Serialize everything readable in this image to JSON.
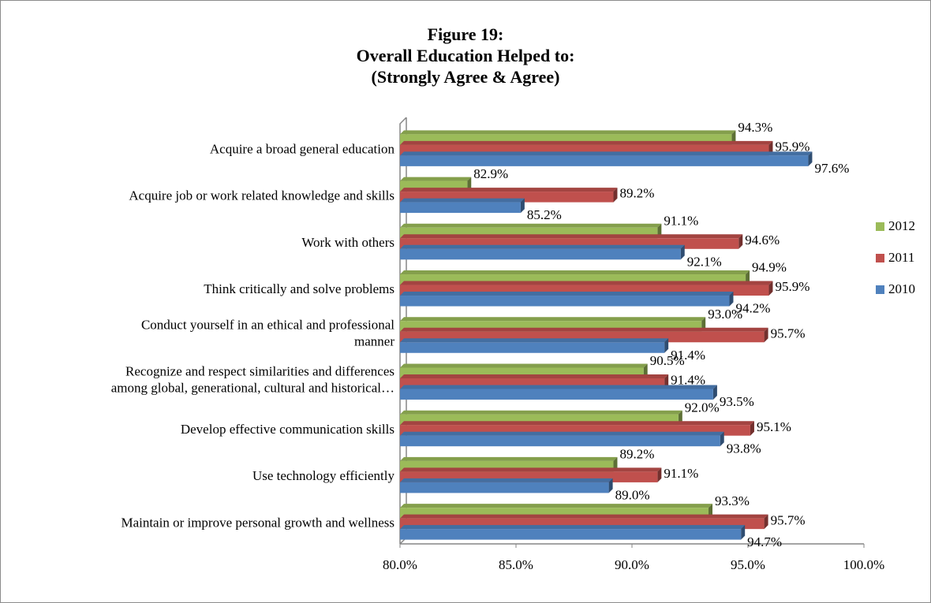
{
  "chart_data": {
    "type": "bar",
    "orientation": "horizontal",
    "title": [
      "Figure 19:",
      "Overall Education Helped to:",
      "(Strongly Agree & Agree)"
    ],
    "categories": [
      "Acquire a broad general education",
      "Acquire job or work related knowledge and skills",
      "Work with others",
      "Think critically and solve problems",
      "Conduct yourself in an ethical and professional manner",
      "Recognize and respect similarities and differences among global, generational, cultural and historical…",
      "Develop effective communication skills",
      "Use technology efficiently",
      "Maintain or improve personal growth and wellness"
    ],
    "series": [
      {
        "name": "2012",
        "color": "#9bbb59",
        "values": [
          94.3,
          82.9,
          91.1,
          94.9,
          93.0,
          90.5,
          92.0,
          89.2,
          93.3
        ],
        "value_labels": [
          "94.3%",
          "82.9%",
          "91.1%",
          "94.9%",
          "93.0%",
          "90.5%",
          "92.0%",
          "89.2%",
          "93.3%"
        ]
      },
      {
        "name": "2011",
        "color": "#c0504d",
        "values": [
          95.9,
          89.2,
          94.6,
          95.9,
          95.7,
          91.4,
          95.1,
          91.1,
          95.7
        ],
        "value_labels": [
          "95.9%",
          "89.2%",
          "94.6%",
          "95.9%",
          "95.7%",
          "91.4%",
          "95.1%",
          "91.1%",
          "95.7%"
        ]
      },
      {
        "name": "2010",
        "color": "#4f81bd",
        "values": [
          97.6,
          85.2,
          92.1,
          94.2,
          91.4,
          93.5,
          93.8,
          89.0,
          94.7
        ],
        "value_labels": [
          "97.6%",
          "85.2%",
          "92.1%",
          "94.2%",
          "91.4%",
          "93.5%",
          "93.8%",
          "89.0%",
          "94.7%"
        ]
      }
    ],
    "xlim": [
      80,
      100
    ],
    "xticks": [
      {
        "value": 80,
        "label": "80.0%"
      },
      {
        "value": 85,
        "label": "85.0%"
      },
      {
        "value": 90,
        "label": "90.0%"
      },
      {
        "value": 95,
        "label": "95.0%"
      },
      {
        "value": 100,
        "label": "100.0%"
      }
    ],
    "legend": "right",
    "grid": false
  }
}
